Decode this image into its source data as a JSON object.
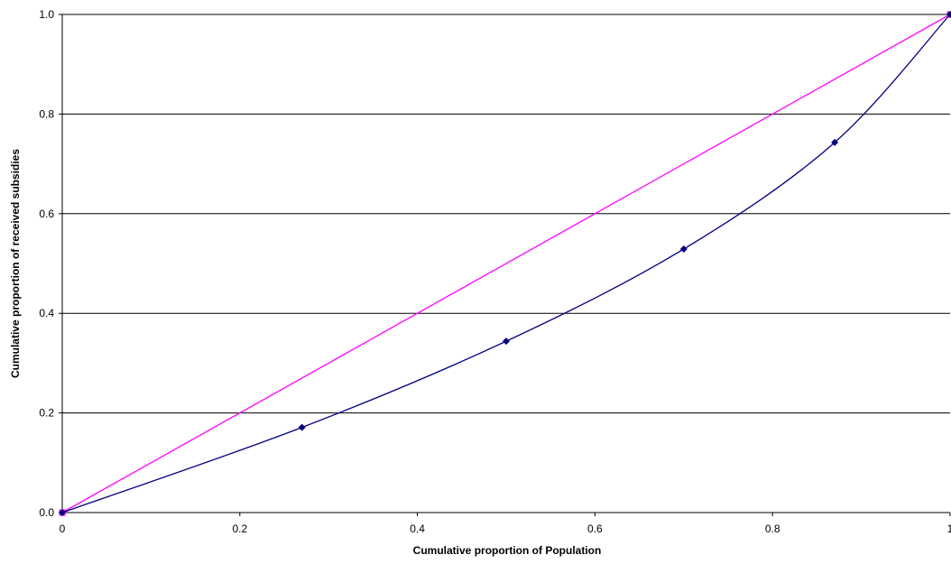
{
  "chart_data": {
    "type": "line",
    "title": "",
    "xlabel": "Cumulative proportion of Population",
    "ylabel": "Cumulative proportion of received subsidies",
    "xlim": [
      0,
      1
    ],
    "ylim": [
      0,
      1
    ],
    "x_ticks": [
      {
        "value": 0,
        "label": "0"
      },
      {
        "value": 0.2,
        "label": "0.2"
      },
      {
        "value": 0.4,
        "label": "0.4"
      },
      {
        "value": 0.6,
        "label": "0.6"
      },
      {
        "value": 0.8,
        "label": "0.8"
      },
      {
        "value": 1,
        "label": "1"
      }
    ],
    "y_ticks": [
      {
        "value": 0,
        "label": "0.0"
      },
      {
        "value": 0.2,
        "label": "0.2"
      },
      {
        "value": 0.4,
        "label": "0.4"
      },
      {
        "value": 0.6,
        "label": "0.6"
      },
      {
        "value": 0.8,
        "label": "0.8"
      },
      {
        "value": 1,
        "label": "1.0"
      }
    ],
    "grid": {
      "horizontal": true,
      "vertical": false
    },
    "legend": "none",
    "series": [
      {
        "color": "#ff00ff",
        "marker": "square",
        "smooth": false,
        "points": [
          [
            0,
            0
          ],
          [
            1,
            1
          ]
        ]
      },
      {
        "color": "#000080",
        "marker": "diamond",
        "smooth": true,
        "points": [
          [
            0,
            0
          ],
          [
            0.27,
            0.171
          ],
          [
            0.5,
            0.344
          ],
          [
            0.7,
            0.529
          ],
          [
            0.87,
            0.743
          ],
          [
            1,
            1
          ]
        ]
      }
    ]
  }
}
